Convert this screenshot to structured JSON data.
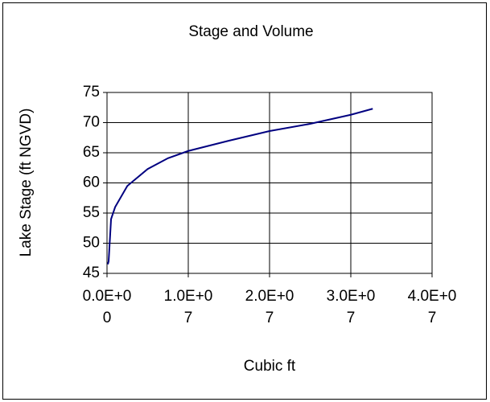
{
  "chart_data": {
    "type": "line",
    "title": "Stage and Volume",
    "x_label": "Cubic ft",
    "y_label": "Lake Stage (ft NGVD)",
    "x": [
      100000,
      200000,
      500000,
      1000000,
      2500000,
      5000000,
      7500000,
      10000000,
      15000000,
      20000000,
      25000000,
      30000000,
      32700000
    ],
    "series": [
      {
        "name": "Stage",
        "color": "#000080",
        "values": [
          46.5,
          47,
          54,
          56,
          59.5,
          62.3,
          64.1,
          65.3,
          67,
          68.6,
          69.8,
          71.3,
          72.3
        ]
      }
    ],
    "xlim": [
      0,
      40000000
    ],
    "xticks": [
      {
        "value": 0,
        "label": "0.0E+00"
      },
      {
        "value": 10000000,
        "label": "1.0E+07"
      },
      {
        "value": 20000000,
        "label": "2.0E+07"
      },
      {
        "value": 30000000,
        "label": "3.0E+07"
      },
      {
        "value": 40000000,
        "label": "4.0E+07"
      }
    ],
    "ylim": [
      45,
      75
    ],
    "yticks": [
      45,
      50,
      55,
      60,
      65,
      70,
      75
    ],
    "grid": true
  }
}
